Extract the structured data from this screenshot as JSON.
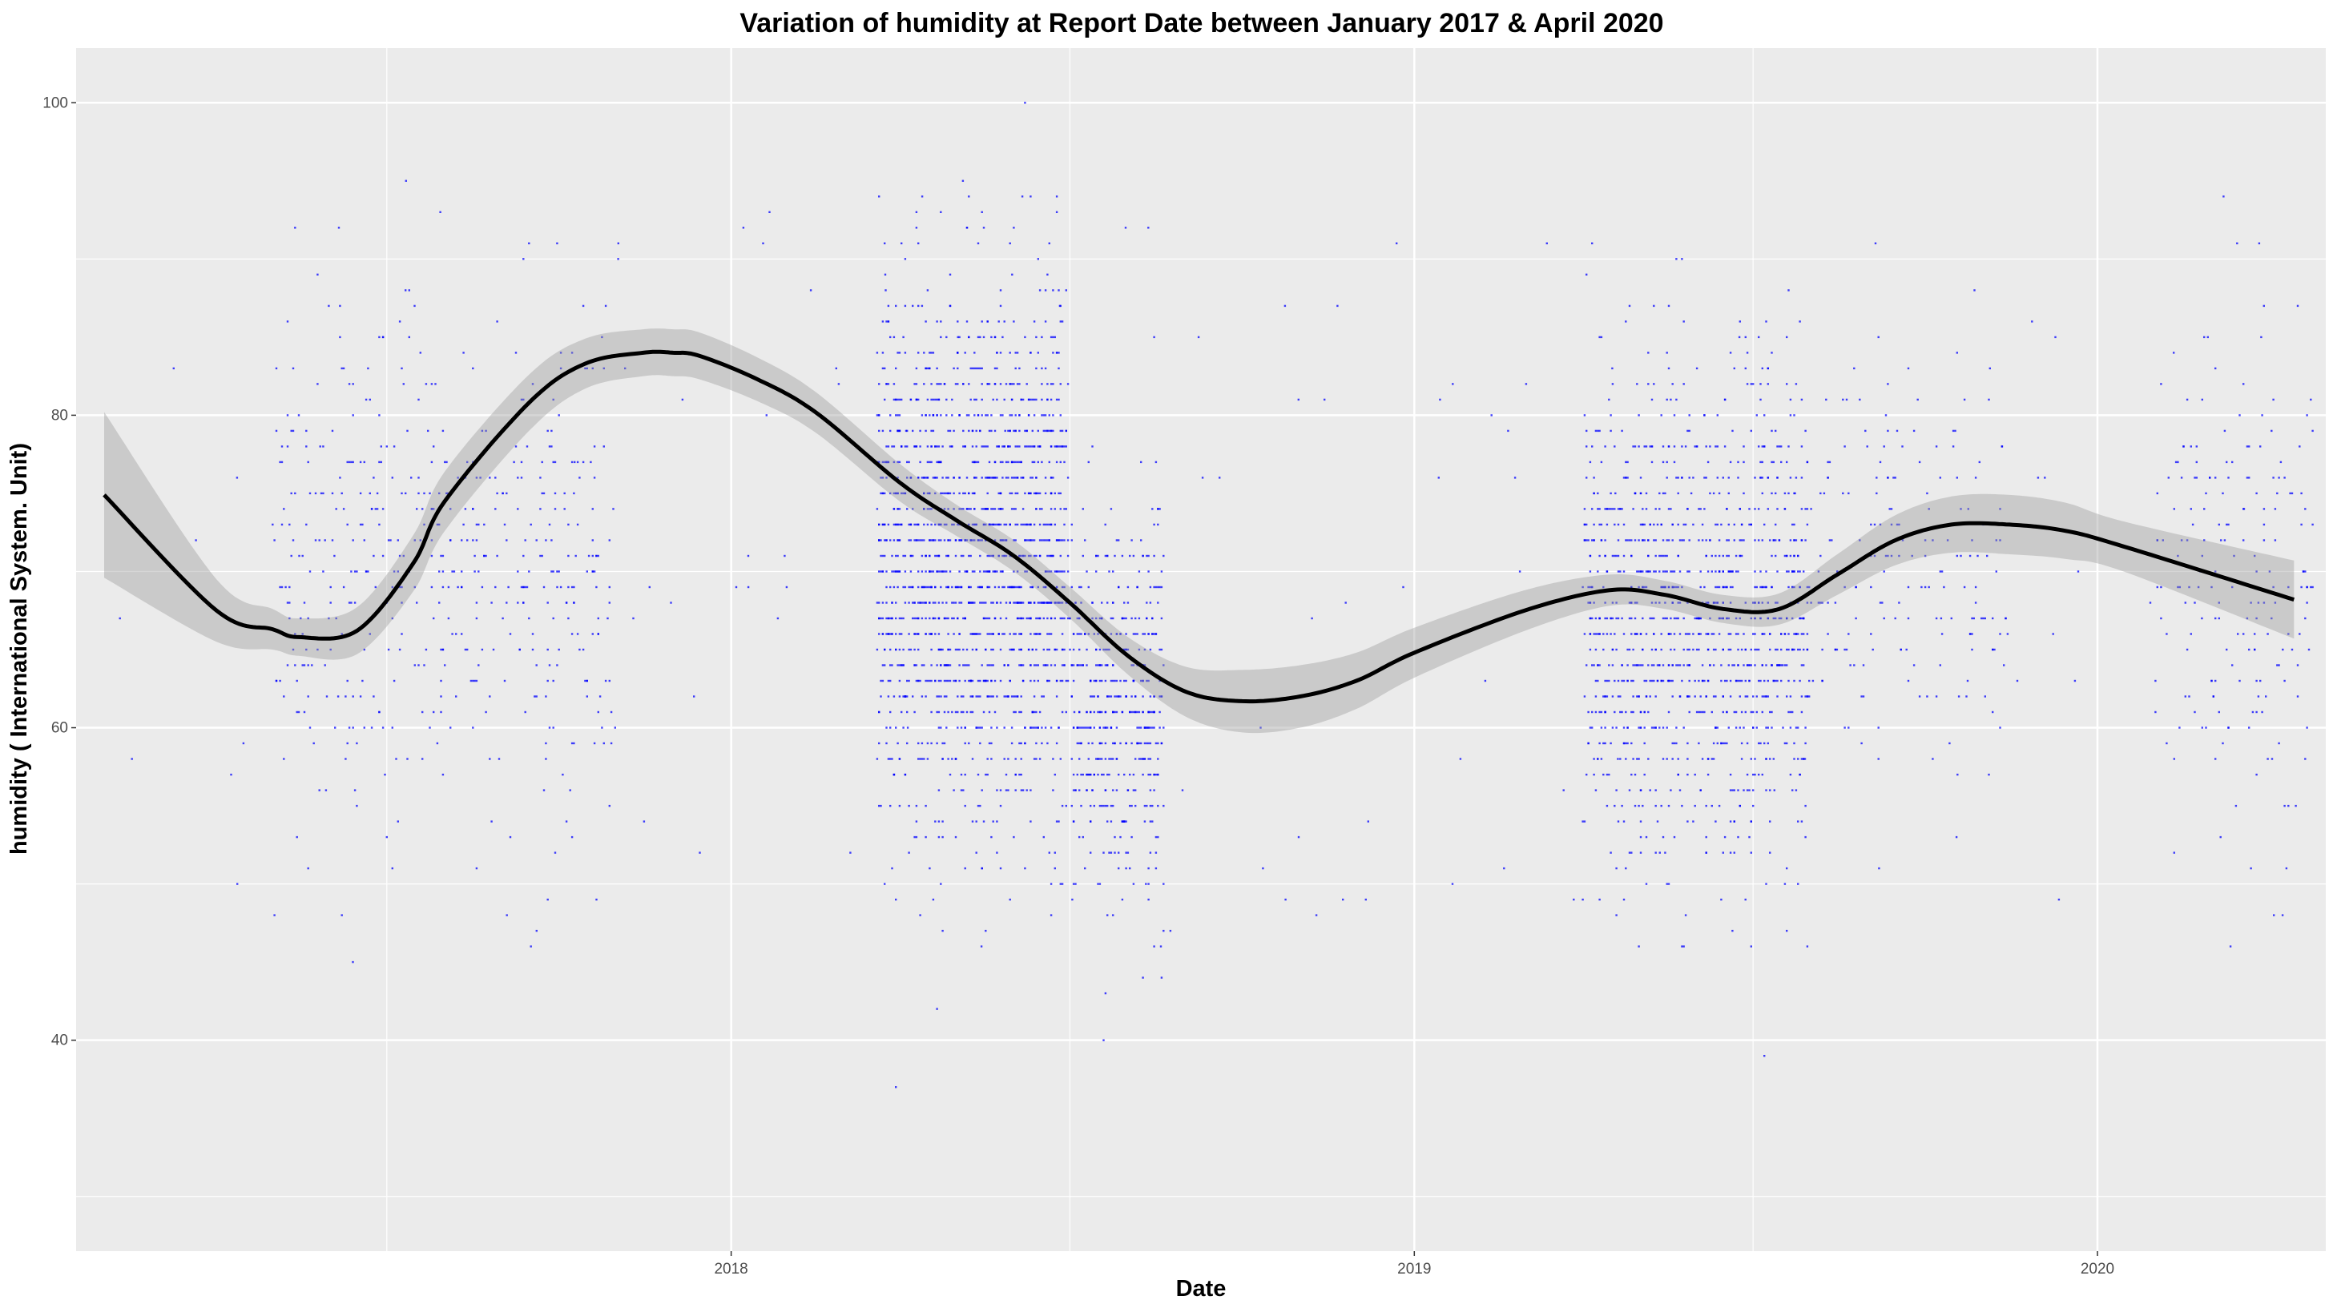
{
  "chart_data": {
    "type": "scatter",
    "title": "Variation of  humidity  at Report Date between January 2017 & April 2020",
    "xlabel": "Date",
    "ylabel": "humidity ( International System. Unit)",
    "x_ticks": [
      "2018",
      "2019",
      "2020"
    ],
    "y_ticks": [
      40,
      60,
      80,
      100
    ],
    "xlim": [
      "2017-01-16",
      "2020-05-02"
    ],
    "ylim": [
      26.5,
      103.5
    ],
    "grid": true,
    "background": "#ebebeb",
    "point_color": "#0000ff",
    "smooth_color": "#000000",
    "band_color": "#999999",
    "clusters": [
      {
        "start": "2017-05-01",
        "end": "2017-10-31",
        "y_center": 70,
        "y_spread": 13,
        "density": "medium"
      },
      {
        "start": "2018-03-20",
        "end": "2018-06-30",
        "y_center": 71,
        "y_spread": 14,
        "density": "very high"
      },
      {
        "start": "2018-07-01",
        "end": "2018-08-20",
        "y_center": 62,
        "y_spread": 10,
        "density": "medium"
      },
      {
        "start": "2019-04-01",
        "end": "2019-07-31",
        "y_center": 67,
        "y_spread": 13,
        "density": "high"
      },
      {
        "start": "2019-08-01",
        "end": "2019-11-15",
        "y_center": 70,
        "y_spread": 10,
        "density": "low"
      },
      {
        "start": "2020-02-01",
        "end": "2020-04-25",
        "y_center": 70,
        "y_spread": 12,
        "density": "low"
      }
    ],
    "smooth_series": {
      "name": "",
      "x": [
        "2017-01-31",
        "2017-04-01",
        "2017-05-01",
        "2017-05-15",
        "2017-06-15",
        "2017-07-15",
        "2017-08-01",
        "2017-09-15",
        "2017-10-15",
        "2017-11-15",
        "2017-12-01",
        "2017-12-15",
        "2018-01-15",
        "2018-02-15",
        "2018-04-01",
        "2018-05-01",
        "2018-06-01",
        "2018-07-01",
        "2018-08-01",
        "2018-09-01",
        "2018-10-01",
        "2018-11-01",
        "2018-12-01",
        "2019-01-01",
        "2019-03-01",
        "2019-04-15",
        "2019-05-15",
        "2019-06-15",
        "2019-07-15",
        "2019-08-15",
        "2019-09-15",
        "2019-10-15",
        "2019-11-15",
        "2019-12-15",
        "2020-01-15",
        "2020-04-15"
      ],
      "y": [
        74.9,
        67.5,
        66.3,
        65.8,
        66.2,
        70.5,
        74.5,
        80.8,
        83.3,
        84.0,
        84.0,
        83.8,
        82.3,
        80.2,
        75.7,
        73.3,
        71.0,
        68.0,
        64.6,
        62.3,
        61.7,
        62.0,
        63.0,
        64.8,
        67.5,
        68.8,
        68.5,
        67.6,
        67.6,
        69.8,
        72.0,
        73.0,
        73.0,
        72.6,
        71.6,
        68.2
      ],
      "band_half_width": [
        5.3,
        2.0,
        1.3,
        1.2,
        1.5,
        1.8,
        1.9,
        1.8,
        1.6,
        1.5,
        1.5,
        1.5,
        1.4,
        1.3,
        1.2,
        1.0,
        1.0,
        1.0,
        1.2,
        1.6,
        2.0,
        2.0,
        1.8,
        1.6,
        1.3,
        1.0,
        0.9,
        0.9,
        1.0,
        1.3,
        1.6,
        1.8,
        1.9,
        1.8,
        1.6,
        2.5
      ]
    }
  }
}
